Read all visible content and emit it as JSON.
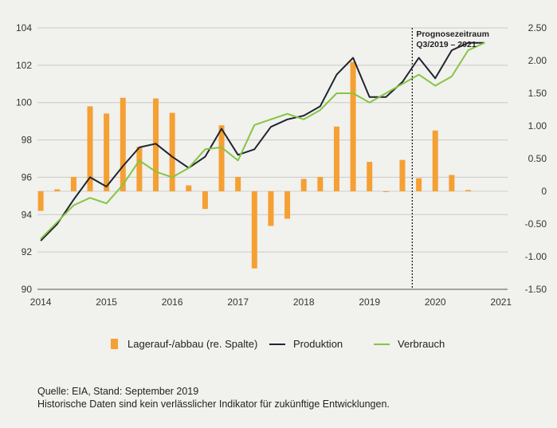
{
  "chart_data": {
    "type": "bar+line",
    "title": "",
    "forecast_label_line1": "Prognosezeitraum",
    "forecast_label_line2": "Q3/2019 – 2021",
    "forecast_start": 2019.65,
    "x_ticks": [
      "2014",
      "2015",
      "2016",
      "2017",
      "2018",
      "2019",
      "2020",
      "2021"
    ],
    "x_tick_values": [
      2014,
      2015,
      2016,
      2017,
      2018,
      2019,
      2020,
      2021
    ],
    "y_left": {
      "min": 90,
      "max": 104,
      "ticks": [
        "104",
        "102",
        "100",
        "98",
        "96",
        "94",
        "92",
        "90"
      ],
      "tick_values": [
        104,
        102,
        100,
        98,
        96,
        94,
        92,
        90
      ]
    },
    "y_right": {
      "min": -1.5,
      "max": 2.5,
      "ticks": [
        "2.50",
        "2.00",
        "1.50",
        "1.00",
        "0.50",
        "0",
        "-0.50",
        "-1.00",
        "-1.50"
      ],
      "tick_values": [
        2.5,
        2.0,
        1.5,
        1.0,
        0.5,
        0,
        -0.5,
        -1.0,
        -1.5
      ]
    },
    "quarters": [
      2014.0,
      2014.25,
      2014.5,
      2014.75,
      2015.0,
      2015.25,
      2015.5,
      2015.75,
      2016.0,
      2016.25,
      2016.5,
      2016.75,
      2017.0,
      2017.25,
      2017.5,
      2017.75,
      2018.0,
      2018.25,
      2018.5,
      2018.75,
      2019.0,
      2019.25,
      2019.5,
      2019.75,
      2020.0,
      2020.25,
      2020.5,
      2020.75,
      2021.0
    ],
    "series": [
      {
        "name": "Lagerauf-/abbau (re. Spalte)",
        "type": "bar",
        "axis": "right",
        "color": "#f5a033",
        "values": [
          -0.3,
          0.03,
          0.22,
          1.3,
          1.19,
          1.43,
          0.68,
          1.42,
          1.2,
          0.09,
          -0.27,
          1.01,
          0.22,
          -1.18,
          -0.53,
          -0.42,
          0.19,
          0.22,
          0.99,
          1.98,
          0.45,
          0.0,
          0.48,
          0.2,
          0.93,
          0.25,
          0.02
        ]
      },
      {
        "name": "Produktion",
        "type": "line",
        "axis": "left",
        "color": "#1f2530",
        "values": [
          92.6,
          93.5,
          94.8,
          96.0,
          95.5,
          96.6,
          97.6,
          97.8,
          97.1,
          96.5,
          97.1,
          98.6,
          97.2,
          97.5,
          98.7,
          99.1,
          99.3,
          99.8,
          101.5,
          102.4,
          100.3,
          100.3,
          101.1,
          102.4,
          101.3,
          102.8,
          103.2,
          103.2
        ]
      },
      {
        "name": "Verbrauch",
        "type": "line",
        "axis": "left",
        "color": "#86c542",
        "values": [
          92.7,
          93.6,
          94.5,
          94.9,
          94.6,
          95.6,
          96.9,
          96.3,
          96.0,
          96.5,
          97.5,
          97.6,
          96.9,
          98.8,
          99.1,
          99.4,
          99.1,
          99.6,
          100.5,
          100.5,
          100.0,
          100.5,
          101.0,
          101.5,
          100.9,
          101.4,
          102.8,
          103.2
        ]
      }
    ]
  },
  "legend": {
    "items": [
      {
        "label": "Lagerauf-/abbau (re. Spalte)",
        "color": "#f5a033"
      },
      {
        "label": "Produktion",
        "color": "#1f2530"
      },
      {
        "label": "Verbrauch",
        "color": "#86c542"
      }
    ]
  },
  "source": {
    "line1": "Quelle: EIA, Stand: September 2019",
    "line2": "Historische Daten sind kein verlässlicher Indikator für zukünftige Entwicklungen."
  }
}
